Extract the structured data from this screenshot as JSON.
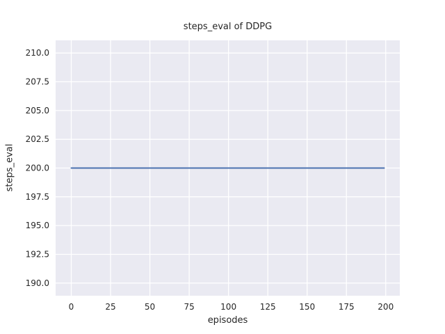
{
  "chart_data": {
    "type": "line",
    "title": "steps_eval of DDPG",
    "xlabel": "episodes",
    "ylabel": "steps_eval",
    "xlim": [
      -9.95,
      208.95
    ],
    "ylim": [
      188.9,
      211.1
    ],
    "xtick_values": [
      0,
      25,
      50,
      75,
      100,
      125,
      150,
      175,
      200
    ],
    "xtick_labels": [
      "0",
      "25",
      "50",
      "75",
      "100",
      "125",
      "150",
      "175",
      "200"
    ],
    "ytick_values": [
      190.0,
      192.5,
      195.0,
      197.5,
      200.0,
      202.5,
      205.0,
      207.5,
      210.0
    ],
    "ytick_labels": [
      "190.0",
      "192.5",
      "195.0",
      "197.5",
      "200.0",
      "202.5",
      "205.0",
      "207.5",
      "210.0"
    ],
    "grid": true,
    "legend": "none",
    "series": [
      {
        "name": "steps_eval",
        "color": "#4C72B0",
        "constant_value": 200.0,
        "x": [
          0,
          199
        ],
        "y": [
          200.0,
          200.0
        ]
      }
    ],
    "colors": {
      "axes_background": "#EAEAF2",
      "gridline": "#FFFFFF",
      "text": "#262626",
      "figure_background": "#FFFFFF"
    }
  }
}
